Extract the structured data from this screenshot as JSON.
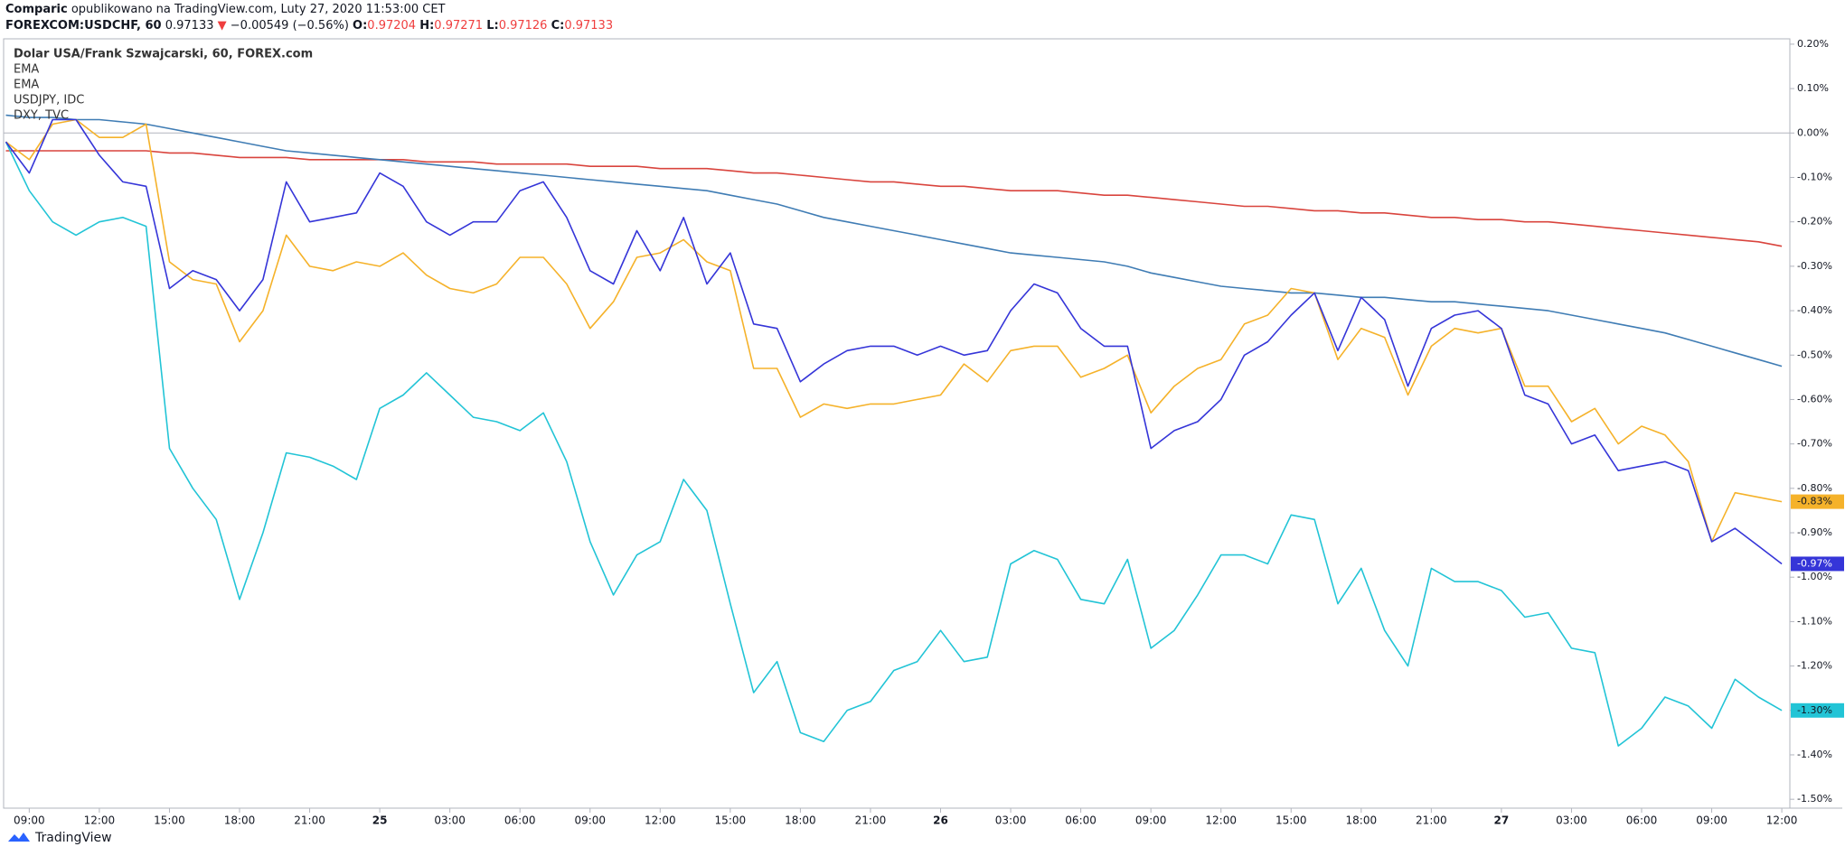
{
  "header": {
    "author": "Comparic",
    "published": "opublikowano na TradingView.com, Luty 27, 2020 11:53:00 CET",
    "symbol": "FOREXCOM:USDCHF, 60",
    "price": "0.97133",
    "arrow": "▼",
    "change": "−0.00549 (−0.56%)",
    "ohlc": [
      {
        "label": "O:",
        "value": "0.97204"
      },
      {
        "label": "H:",
        "value": "0.97271"
      },
      {
        "label": "L:",
        "value": "0.97126"
      },
      {
        "label": "C:",
        "value": "0.97133"
      }
    ]
  },
  "footer": {
    "brand": "TradingView"
  },
  "chart_data": {
    "type": "line",
    "categories": [
      null,
      "09:00",
      null,
      null,
      "12:00",
      null,
      null,
      "15:00",
      null,
      null,
      "18:00",
      null,
      null,
      "21:00",
      null,
      null,
      "25",
      null,
      null,
      "03:00",
      null,
      null,
      "06:00",
      null,
      null,
      "09:00",
      null,
      null,
      "12:00",
      null,
      null,
      "15:00",
      null,
      null,
      "18:00",
      null,
      null,
      "21:00",
      null,
      null,
      "26",
      null,
      null,
      "03:00",
      null,
      null,
      "06:00",
      null,
      null,
      "09:00",
      null,
      null,
      "12:00",
      null,
      null,
      "15:00",
      null,
      null,
      "18:00",
      null,
      null,
      "21:00",
      null,
      null,
      "27",
      null,
      null,
      "03:00",
      null,
      null,
      "06:00",
      null,
      null,
      "09:00",
      null,
      null,
      "12:00"
    ],
    "series": [
      {
        "name": "Dolar USA/Frank Szwajcarski, 60, FOREX.com",
        "color": "#3535d8",
        "last_value_label": "-0.97%",
        "values": [
          -0.02,
          -0.09,
          0.03,
          0.03,
          -0.05,
          -0.11,
          -0.12,
          -0.35,
          -0.31,
          -0.33,
          -0.4,
          -0.33,
          -0.11,
          -0.2,
          -0.19,
          -0.18,
          -0.09,
          -0.12,
          -0.2,
          -0.23,
          -0.2,
          -0.2,
          -0.13,
          -0.11,
          -0.19,
          -0.31,
          -0.34,
          -0.22,
          -0.31,
          -0.19,
          -0.34,
          -0.27,
          -0.43,
          -0.44,
          -0.56,
          -0.52,
          -0.49,
          -0.48,
          -0.48,
          -0.5,
          -0.48,
          -0.5,
          -0.49,
          -0.4,
          -0.34,
          -0.36,
          -0.44,
          -0.48,
          -0.48,
          -0.71,
          -0.67,
          -0.65,
          -0.6,
          -0.5,
          -0.47,
          -0.41,
          -0.36,
          -0.49,
          -0.37,
          -0.42,
          -0.57,
          -0.44,
          -0.41,
          -0.4,
          -0.44,
          -0.59,
          -0.61,
          -0.7,
          -0.68,
          -0.76,
          -0.75,
          -0.74,
          -0.76,
          -0.92,
          -0.89,
          -0.93,
          -0.97
        ]
      },
      {
        "name": "EMA",
        "color": "#d9443d",
        "values": [
          -0.04,
          -0.04,
          -0.04,
          -0.04,
          -0.04,
          -0.04,
          -0.04,
          -0.045,
          -0.045,
          -0.05,
          -0.055,
          -0.055,
          -0.055,
          -0.06,
          -0.06,
          -0.06,
          -0.06,
          -0.06,
          -0.065,
          -0.065,
          -0.065,
          -0.07,
          -0.07,
          -0.07,
          -0.07,
          -0.075,
          -0.075,
          -0.075,
          -0.08,
          -0.08,
          -0.08,
          -0.085,
          -0.09,
          -0.09,
          -0.095,
          -0.1,
          -0.105,
          -0.11,
          -0.11,
          -0.115,
          -0.12,
          -0.12,
          -0.125,
          -0.13,
          -0.13,
          -0.13,
          -0.135,
          -0.14,
          -0.14,
          -0.145,
          -0.15,
          -0.155,
          -0.16,
          -0.165,
          -0.165,
          -0.17,
          -0.175,
          -0.175,
          -0.18,
          -0.18,
          -0.185,
          -0.19,
          -0.19,
          -0.195,
          -0.195,
          -0.2,
          -0.2,
          -0.205,
          -0.21,
          -0.215,
          -0.22,
          -0.225,
          -0.23,
          -0.235,
          -0.24,
          -0.245,
          -0.255
        ]
      },
      {
        "name": "EMA",
        "color": "#3f7cb4",
        "values": [
          0.04,
          0.035,
          0.035,
          0.03,
          0.03,
          0.025,
          0.02,
          0.01,
          0,
          -0.01,
          -0.02,
          -0.03,
          -0.04,
          -0.045,
          -0.05,
          -0.055,
          -0.06,
          -0.065,
          -0.07,
          -0.075,
          -0.08,
          -0.085,
          -0.09,
          -0.095,
          -0.1,
          -0.105,
          -0.11,
          -0.115,
          -0.12,
          -0.125,
          -0.13,
          -0.14,
          -0.15,
          -0.16,
          -0.175,
          -0.19,
          -0.2,
          -0.21,
          -0.22,
          -0.23,
          -0.24,
          -0.25,
          -0.26,
          -0.27,
          -0.275,
          -0.28,
          -0.285,
          -0.29,
          -0.3,
          -0.315,
          -0.325,
          -0.335,
          -0.345,
          -0.35,
          -0.355,
          -0.36,
          -0.36,
          -0.365,
          -0.37,
          -0.37,
          -0.375,
          -0.38,
          -0.38,
          -0.385,
          -0.39,
          -0.395,
          -0.4,
          -0.41,
          -0.42,
          -0.43,
          -0.44,
          -0.45,
          -0.465,
          -0.48,
          -0.495,
          -0.51,
          -0.525
        ]
      },
      {
        "name": "USDJPY, IDC",
        "color": "#22c4d6",
        "last_value_label": "-1.30%",
        "values": [
          -0.02,
          -0.13,
          -0.2,
          -0.23,
          -0.2,
          -0.19,
          -0.21,
          -0.71,
          -0.8,
          -0.87,
          -1.05,
          -0.9,
          -0.72,
          -0.73,
          -0.75,
          -0.78,
          -0.62,
          -0.59,
          -0.54,
          -0.59,
          -0.64,
          -0.65,
          -0.67,
          -0.63,
          -0.74,
          -0.92,
          -1.04,
          -0.95,
          -0.92,
          -0.78,
          -0.85,
          -1.06,
          -1.26,
          -1.19,
          -1.35,
          -1.37,
          -1.3,
          -1.28,
          -1.21,
          -1.19,
          -1.12,
          -1.19,
          -1.18,
          -0.97,
          -0.94,
          -0.96,
          -1.05,
          -1.06,
          -0.96,
          -1.16,
          -1.12,
          -1.04,
          -0.95,
          -0.95,
          -0.97,
          -0.86,
          -0.87,
          -1.06,
          -0.98,
          -1.12,
          -1.2,
          -0.98,
          -1.01,
          -1.01,
          -1.03,
          -1.09,
          -1.08,
          -1.16,
          -1.17,
          -1.38,
          -1.34,
          -1.27,
          -1.29,
          -1.34,
          -1.23,
          -1.27,
          -1.3
        ]
      },
      {
        "name": "DXY, TVC",
        "color": "#f5b22a",
        "last_value_label": "-0.83%",
        "values": [
          -0.02,
          -0.06,
          0.02,
          0.03,
          -0.01,
          -0.01,
          0.02,
          -0.29,
          -0.33,
          -0.34,
          -0.47,
          -0.4,
          -0.23,
          -0.3,
          -0.31,
          -0.29,
          -0.3,
          -0.27,
          -0.32,
          -0.35,
          -0.36,
          -0.34,
          -0.28,
          -0.28,
          -0.34,
          -0.44,
          -0.38,
          -0.28,
          -0.27,
          -0.24,
          -0.29,
          -0.31,
          -0.53,
          -0.53,
          -0.64,
          -0.61,
          -0.62,
          -0.61,
          -0.61,
          -0.6,
          -0.59,
          -0.52,
          -0.56,
          -0.49,
          -0.48,
          -0.48,
          -0.55,
          -0.53,
          -0.5,
          -0.63,
          -0.57,
          -0.53,
          -0.51,
          -0.43,
          -0.41,
          -0.35,
          -0.36,
          -0.51,
          -0.44,
          -0.46,
          -0.59,
          -0.48,
          -0.44,
          -0.45,
          -0.44,
          -0.57,
          -0.57,
          -0.65,
          -0.62,
          -0.7,
          -0.66,
          -0.68,
          -0.74,
          -0.92,
          -0.81,
          -0.82,
          -0.83
        ]
      }
    ],
    "ylim": [
      -1.52,
      0.21
    ],
    "yticks": [
      {
        "value": 0.2,
        "label": "0.20%"
      },
      {
        "value": 0.1,
        "label": "0.10%"
      },
      {
        "value": 0,
        "label": "0.00%"
      },
      {
        "value": -0.1,
        "label": "-0.10%"
      },
      {
        "value": -0.2,
        "label": "-0.20%"
      },
      {
        "value": -0.3,
        "label": "-0.30%"
      },
      {
        "value": -0.4,
        "label": "-0.40%"
      },
      {
        "value": -0.5,
        "label": "-0.50%"
      },
      {
        "value": -0.6,
        "label": "-0.60%"
      },
      {
        "value": -0.7,
        "label": "-0.70%"
      },
      {
        "value": -0.8,
        "label": "-0.80%"
      },
      {
        "value": -0.9,
        "label": "-0.90%"
      },
      {
        "value": -1,
        "label": "-1.00%"
      },
      {
        "value": -1.1,
        "label": "-1.10%"
      },
      {
        "value": -1.2,
        "label": "-1.20%"
      },
      {
        "value": -1.3,
        "label": "-1.30%"
      },
      {
        "value": -1.4,
        "label": "-1.40%"
      },
      {
        "value": -1.5,
        "label": "-1.50%"
      }
    ],
    "y_axis_side": "right",
    "grid": false,
    "zero_line": true
  }
}
